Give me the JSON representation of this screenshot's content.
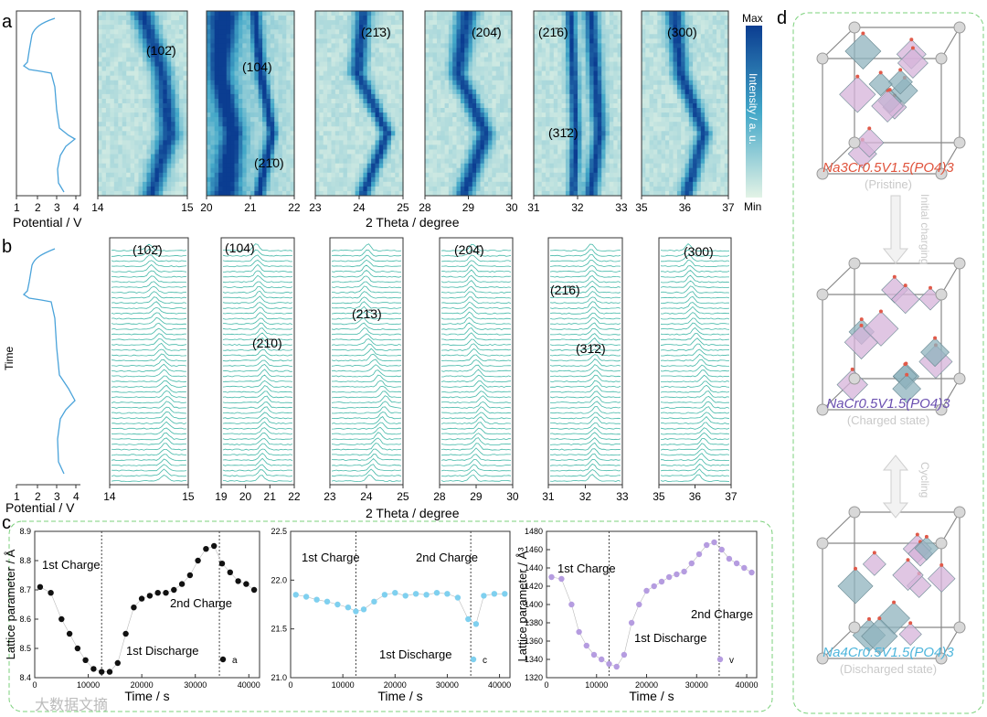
{
  "panel_letters": {
    "a": "a",
    "b": "b",
    "c": "c",
    "d": "d"
  },
  "colors": {
    "curve": "#4aa3da",
    "waterfall": "#44b8a8",
    "heat_max": "#0b3d91",
    "heat_mid": "#42a7c8",
    "heat_min": "#e3f3e6",
    "charge_dots": "#111111",
    "c_dots": "#7fd0ef",
    "v_dots": "#b59ce0",
    "frame_green": "#7bd07b",
    "formula_pristine": "#e0533c",
    "formula_charged": "#6a4fb0",
    "formula_discharged": "#4fb6dc"
  },
  "panel_a": {
    "potential_axis_label": "Potential / V",
    "potential_ticks": [
      "1",
      "2",
      "3",
      "4"
    ],
    "two_theta_label": "2 Theta / degree",
    "colorbar": {
      "max": "Max",
      "min": "Min",
      "title": "Intensity / a. u."
    },
    "heatmaps": [
      {
        "ticks": [
          "14",
          "15"
        ],
        "labels": [
          "(102̄)"
        ]
      },
      {
        "ticks": [
          "20",
          "21",
          "22"
        ],
        "labels": [
          "(104)",
          "(21̄0)"
        ]
      },
      {
        "ticks": [
          "23",
          "24",
          "25"
        ],
        "labels": [
          "(21̄3)"
        ]
      },
      {
        "ticks": [
          "28",
          "29",
          "30"
        ],
        "labels": [
          "(204̄)"
        ]
      },
      {
        "ticks": [
          "31",
          "32",
          "33"
        ],
        "labels": [
          "(21̄6)",
          "(31̄2)"
        ]
      },
      {
        "ticks": [
          "35",
          "36",
          "37"
        ],
        "labels": [
          "(300)"
        ]
      }
    ]
  },
  "panel_b": {
    "time_label": "Time",
    "potential_axis_label": "Potential / V",
    "potential_ticks": [
      "1",
      "2",
      "3",
      "4"
    ],
    "two_theta_label": "2 Theta / degree",
    "waterfalls": [
      {
        "ticks": [
          "14",
          "15"
        ],
        "labels": [
          "(102̄)"
        ]
      },
      {
        "ticks": [
          "19",
          "20",
          "21",
          "22"
        ],
        "labels": [
          "(104)",
          "(21̄0)"
        ]
      },
      {
        "ticks": [
          "23",
          "24",
          "25"
        ],
        "labels": [
          "(21̄3)"
        ]
      },
      {
        "ticks": [
          "28",
          "29",
          "30"
        ],
        "labels": [
          "(204̄)"
        ]
      },
      {
        "ticks": [
          "31",
          "32",
          "33"
        ],
        "labels": [
          "(21̄6)",
          "(31̄2)"
        ]
      },
      {
        "ticks": [
          "35",
          "36",
          "37"
        ],
        "labels": [
          "(300)"
        ]
      }
    ]
  },
  "panel_c": {
    "plots": [
      {
        "ylabel": "Lattice parameter / Å",
        "xlabel": "Time / s",
        "yticks": [
          "8.4",
          "8.5",
          "8.6",
          "8.7",
          "8.8",
          "8.9"
        ],
        "xticks": [
          "0",
          "10000",
          "20000",
          "30000",
          "40000"
        ],
        "annotations": {
          "first_charge": "1st Charge",
          "second_charge": "2nd Charge",
          "first_discharge": "1st Discharge"
        },
        "legend": "a"
      },
      {
        "ylabel": "",
        "xlabel": "Time / s",
        "yticks": [
          "21.0",
          "21.5",
          "22.0",
          "22.5"
        ],
        "xticks": [
          "0",
          "10000",
          "20000",
          "30000",
          "40000"
        ],
        "annotations": {
          "first_charge": "1st Charge",
          "second_charge": "2nd Charge",
          "first_discharge": "1st Discharge"
        },
        "legend": "c"
      },
      {
        "ylabel": "Lattice parameter / Å³",
        "xlabel": "Time / s",
        "yticks": [
          "1320",
          "1340",
          "1360",
          "1380",
          "1400",
          "1420",
          "1440",
          "1460",
          "1480"
        ],
        "xticks": [
          "0",
          "10000",
          "20000",
          "30000",
          "40000"
        ],
        "annotations": {
          "first_charge": "1st Charge",
          "second_charge": "2nd Charge",
          "first_discharge": "1st Discharge"
        },
        "legend": "v"
      }
    ]
  },
  "panel_d": {
    "structures": [
      {
        "formula": "Na3Cr0.5V1.5(PO4)3",
        "state": "(Pristine)"
      },
      {
        "formula": "NaCr0.5V1.5(PO4)3",
        "state": "(Charged state)"
      },
      {
        "formula": "Na4Cr0.5V1.5(PO4)3",
        "state": "(Discharged state)"
      }
    ],
    "arrow_labels": {
      "initial": "Initial charging",
      "cycling": "Cycling"
    }
  },
  "watermark": "大数据文摘",
  "chart_data": [
    {
      "type": "scatter",
      "title": "",
      "xlabel": "Time / s",
      "ylabel": "Lattice parameter / Å",
      "xlim": [
        0,
        42000
      ],
      "ylim": [
        8.4,
        8.9
      ],
      "series": [
        {
          "name": "a",
          "x": [
            1000,
            3000,
            5000,
            6500,
            8000,
            9500,
            11000,
            12500,
            14000,
            15500,
            17000,
            18500,
            20000,
            21500,
            23000,
            24500,
            26000,
            27500,
            29000,
            30500,
            32000,
            33500,
            35000,
            36500,
            38000,
            39500,
            41000
          ],
          "y": [
            8.71,
            8.69,
            8.6,
            8.55,
            8.5,
            8.46,
            8.43,
            8.42,
            8.42,
            8.45,
            8.55,
            8.64,
            8.67,
            8.68,
            8.69,
            8.69,
            8.7,
            8.72,
            8.75,
            8.8,
            8.84,
            8.85,
            8.79,
            8.76,
            8.73,
            8.72,
            8.7
          ]
        }
      ]
    },
    {
      "type": "scatter",
      "title": "",
      "xlabel": "Time / s",
      "ylabel": "",
      "xlim": [
        0,
        42000
      ],
      "ylim": [
        21.0,
        22.5
      ],
      "series": [
        {
          "name": "c",
          "x": [
            1000,
            3000,
            5000,
            7000,
            9000,
            11000,
            12500,
            14000,
            16000,
            18000,
            20000,
            22000,
            24000,
            26000,
            28000,
            30000,
            32000,
            34000,
            35500,
            37000,
            39000,
            41000
          ],
          "y": [
            21.85,
            21.83,
            21.8,
            21.78,
            21.75,
            21.72,
            21.68,
            21.7,
            21.78,
            21.85,
            21.87,
            21.84,
            21.86,
            21.85,
            21.87,
            21.86,
            21.82,
            21.6,
            21.55,
            21.84,
            21.86,
            21.86
          ]
        }
      ]
    },
    {
      "type": "scatter",
      "title": "",
      "xlabel": "Time / s",
      "ylabel": "Lattice parameter / Å³",
      "xlim": [
        0,
        42000
      ],
      "ylim": [
        1320,
        1480
      ],
      "series": [
        {
          "name": "v",
          "x": [
            1000,
            3000,
            5000,
            6500,
            8000,
            9500,
            11000,
            12500,
            14000,
            15500,
            17000,
            18500,
            20000,
            21500,
            23000,
            24500,
            26000,
            27500,
            29000,
            30500,
            32000,
            33500,
            35000,
            36500,
            38000,
            39500,
            41000
          ],
          "y": [
            1430,
            1428,
            1400,
            1370,
            1355,
            1345,
            1340,
            1335,
            1332,
            1345,
            1380,
            1400,
            1415,
            1420,
            1425,
            1430,
            1433,
            1436,
            1445,
            1455,
            1465,
            1468,
            1460,
            1450,
            1445,
            1440,
            1435
          ]
        }
      ]
    }
  ]
}
